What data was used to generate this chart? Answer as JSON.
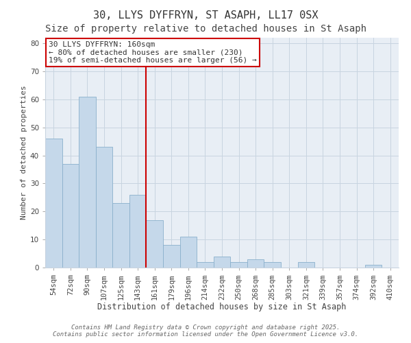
{
  "title": "30, LLYS DYFFRYN, ST ASAPH, LL17 0SX",
  "subtitle": "Size of property relative to detached houses in St Asaph",
  "xlabel": "Distribution of detached houses by size in St Asaph",
  "ylabel": "Number of detached properties",
  "bar_labels": [
    "54sqm",
    "72sqm",
    "90sqm",
    "107sqm",
    "125sqm",
    "143sqm",
    "161sqm",
    "179sqm",
    "196sqm",
    "214sqm",
    "232sqm",
    "250sqm",
    "268sqm",
    "285sqm",
    "303sqm",
    "321sqm",
    "339sqm",
    "357sqm",
    "374sqm",
    "392sqm",
    "410sqm"
  ],
  "bar_values": [
    46,
    37,
    61,
    43,
    23,
    26,
    17,
    8,
    11,
    2,
    4,
    2,
    3,
    2,
    0,
    2,
    0,
    0,
    0,
    1,
    0
  ],
  "bar_color": "#c5d8ea",
  "bar_edgecolor": "#8ab0cc",
  "ylim": [
    0,
    82
  ],
  "yticks": [
    0,
    10,
    20,
    30,
    40,
    50,
    60,
    70,
    80
  ],
  "grid_color": "#c8d4e0",
  "bg_color": "#ffffff",
  "plot_bg_color": "#e8eef5",
  "vline_x_index": 6,
  "vline_color": "#cc0000",
  "annotation_lines": [
    "30 LLYS DYFFRYN: 160sqm",
    "← 80% of detached houses are smaller (230)",
    "19% of semi-detached houses are larger (56) →"
  ],
  "annotation_box_facecolor": "#ffffff",
  "annotation_box_edgecolor": "#cc0000",
  "footer1": "Contains HM Land Registry data © Crown copyright and database right 2025.",
  "footer2": "Contains public sector information licensed under the Open Government Licence v3.0.",
  "title_fontsize": 11,
  "xlabel_fontsize": 8.5,
  "ylabel_fontsize": 8,
  "tick_fontsize": 7.5,
  "annotation_fontsize": 8,
  "footer_fontsize": 6.5
}
